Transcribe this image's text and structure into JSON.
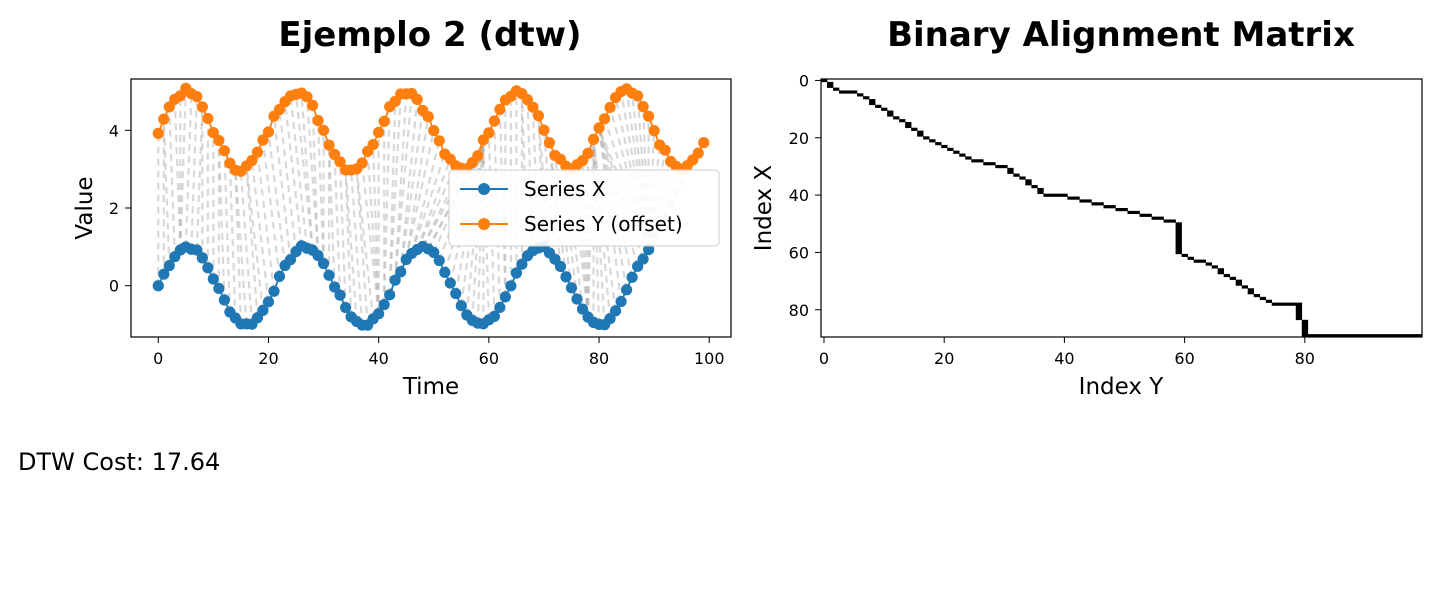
{
  "footer": {
    "cost_label": "DTW Cost: 17.64"
  },
  "chart_data": [
    {
      "type": "line",
      "title": "Ejemplo 2 (dtw)",
      "xlabel": "Time",
      "ylabel": "Value",
      "xlim": [
        -4.95,
        103.95
      ],
      "ylim": [
        -1.32,
        5.32
      ],
      "xticks": [
        0,
        20,
        40,
        60,
        80,
        100
      ],
      "yticks": [
        0,
        2,
        4
      ],
      "grid": false,
      "legend": {
        "position": "center-right",
        "entries": [
          "Series X",
          "Series Y (offset)"
        ]
      },
      "series": [
        {
          "name": "Series X",
          "color": "#1f77b4",
          "marker": "circle",
          "model": {
            "n": 90,
            "amplitude": 1,
            "period": 21.33,
            "noise": 0.05
          }
        },
        {
          "name": "Series Y (offset)",
          "color": "#ff7f0e",
          "marker": "circle",
          "model": {
            "n": 100,
            "offset": 4,
            "amplitude": 1,
            "period": 20,
            "noise": 0.08
          }
        }
      ],
      "warping_lines": {
        "color": "#aaaaaa",
        "style": "dashed",
        "alpha": 0.45
      }
    },
    {
      "type": "heatmap",
      "title": "Binary Alignment Matrix",
      "xlabel": "Index Y",
      "ylabel": "Index X",
      "xlim": [
        0,
        99
      ],
      "ylim": [
        89,
        0
      ],
      "xticks": [
        0,
        20,
        40,
        60,
        80
      ],
      "yticks": [
        0,
        20,
        40,
        60,
        80
      ],
      "colormap": "binary",
      "path_breakpoints": [
        [
          0,
          0
        ],
        [
          2,
          1
        ],
        [
          4,
          3
        ],
        [
          4,
          5
        ],
        [
          10,
          10
        ],
        [
          20,
          17
        ],
        [
          27,
          24
        ],
        [
          30,
          30
        ],
        [
          40,
          37
        ],
        [
          40,
          40
        ],
        [
          50,
          59
        ],
        [
          60,
          59
        ],
        [
          65,
          65
        ],
        [
          75,
          72
        ],
        [
          78,
          75
        ],
        [
          78,
          79
        ],
        [
          89,
          80
        ],
        [
          89,
          99
        ]
      ]
    }
  ]
}
